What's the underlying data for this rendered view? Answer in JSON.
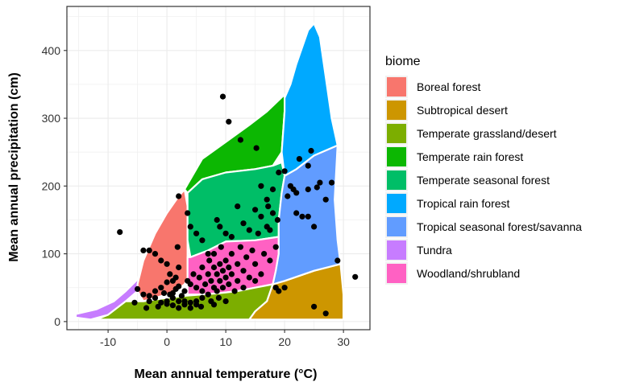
{
  "chart_data": {
    "type": "scatter",
    "xlabel": "Mean annual temperature (°C)",
    "ylabel": "Mean annual precipitation (cm)",
    "xlim": [
      -17,
      34.5
    ],
    "ylim": [
      -12,
      465
    ],
    "x_ticks": [
      -10,
      0,
      10,
      20,
      30
    ],
    "y_ticks": [
      0,
      100,
      200,
      300,
      400
    ],
    "grid": true,
    "legend_position": "right",
    "legend": {
      "title": "biome",
      "entries": [
        {
          "label": "Boreal forest",
          "color": "#F8766D"
        },
        {
          "label": "Subtropical desert",
          "color": "#CD9600"
        },
        {
          "label": "Temperate grassland/desert",
          "color": "#7CAE00"
        },
        {
          "label": "Temperate rain forest",
          "color": "#0CB702"
        },
        {
          "label": "Temperate seasonal forest",
          "color": "#00BE67"
        },
        {
          "label": "Tropical rain forest",
          "color": "#00A9FF"
        },
        {
          "label": "Tropical seasonal forest/savanna",
          "color": "#619CFF"
        },
        {
          "label": "Tundra",
          "color": "#C77CFF"
        },
        {
          "label": "Woodland/shrubland",
          "color": "#FF61C3"
        }
      ]
    },
    "regions": [
      {
        "biome": "Tundra",
        "polygon": [
          [
            -15.5,
            11
          ],
          [
            -12,
            18
          ],
          [
            -9,
            30
          ],
          [
            -7,
            45
          ],
          [
            -5,
            62
          ],
          [
            -4,
            90
          ],
          [
            -5,
            55
          ],
          [
            -5,
            45
          ],
          [
            -7,
            30
          ],
          [
            -10,
            10
          ],
          [
            -13,
            3
          ],
          [
            -15.5,
            6
          ]
        ]
      },
      {
        "biome": "Boreal forest",
        "polygon": [
          [
            -4,
            90
          ],
          [
            -3,
            110
          ],
          [
            -2,
            130
          ],
          [
            0,
            160
          ],
          [
            2,
            185
          ],
          [
            3,
            195
          ],
          [
            3.5,
            170
          ],
          [
            3.5,
            150
          ],
          [
            3.5,
            120
          ],
          [
            3.5,
            95
          ],
          [
            3.5,
            62
          ],
          [
            3,
            55
          ],
          [
            2,
            48
          ],
          [
            0,
            40
          ],
          [
            -2,
            35
          ],
          [
            -4,
            30
          ],
          [
            -5,
            45
          ],
          [
            -5,
            55
          ]
        ]
      },
      {
        "biome": "Temperate rain forest",
        "polygon": [
          [
            3,
            195
          ],
          [
            6,
            240
          ],
          [
            10,
            265
          ],
          [
            14,
            290
          ],
          [
            17,
            310
          ],
          [
            20,
            335
          ],
          [
            20,
            310
          ],
          [
            19.5,
            250
          ],
          [
            18,
            230
          ],
          [
            15,
            225
          ],
          [
            10,
            220
          ],
          [
            6,
            210
          ],
          [
            3.5,
            190
          ]
        ]
      },
      {
        "biome": "Temperate seasonal forest",
        "polygon": [
          [
            3.5,
            190
          ],
          [
            6,
            210
          ],
          [
            10,
            220
          ],
          [
            15,
            225
          ],
          [
            18,
            230
          ],
          [
            19.5,
            235
          ],
          [
            20,
            215
          ],
          [
            19.5,
            190
          ],
          [
            19,
            150
          ],
          [
            19,
            125
          ],
          [
            15,
            120
          ],
          [
            10,
            118
          ],
          [
            7,
            105
          ],
          [
            4,
            95
          ],
          [
            3.5,
            120
          ],
          [
            3.5,
            150
          ]
        ]
      },
      {
        "biome": "Woodland/shrubland",
        "polygon": [
          [
            3.5,
            95
          ],
          [
            4,
            95
          ],
          [
            7,
            105
          ],
          [
            10,
            118
          ],
          [
            15,
            120
          ],
          [
            19,
            125
          ],
          [
            19,
            100
          ],
          [
            18.5,
            75
          ],
          [
            18,
            55
          ],
          [
            15,
            50
          ],
          [
            12,
            45
          ],
          [
            9,
            42
          ],
          [
            6,
            40
          ],
          [
            3.5,
            40
          ],
          [
            3.5,
            62
          ]
        ]
      },
      {
        "biome": "Temperate grassland/desert",
        "polygon": [
          [
            -4,
            30
          ],
          [
            -7,
            30
          ],
          [
            -10,
            10
          ],
          [
            -12,
            3
          ],
          [
            -9,
            3
          ],
          [
            -2,
            3
          ],
          [
            5,
            3
          ],
          [
            10,
            3
          ],
          [
            14,
            3
          ],
          [
            15,
            15
          ],
          [
            17,
            30
          ],
          [
            18,
            55
          ],
          [
            15,
            50
          ],
          [
            12,
            45
          ],
          [
            9,
            42
          ],
          [
            6,
            40
          ],
          [
            3,
            38
          ],
          [
            0,
            35
          ]
        ]
      },
      {
        "biome": "Subtropical desert",
        "polygon": [
          [
            14,
            3
          ],
          [
            30,
            3
          ],
          [
            30,
            40
          ],
          [
            29.5,
            85
          ],
          [
            25,
            75
          ],
          [
            20,
            60
          ],
          [
            18,
            55
          ],
          [
            17,
            30
          ],
          [
            15,
            15
          ]
        ]
      },
      {
        "biome": "Tropical seasonal forest/savanna",
        "polygon": [
          [
            18,
            55
          ],
          [
            20,
            60
          ],
          [
            25,
            75
          ],
          [
            29.5,
            85
          ],
          [
            29,
            120
          ],
          [
            28.5,
            180
          ],
          [
            29,
            260
          ],
          [
            25,
            245
          ],
          [
            22,
            225
          ],
          [
            20,
            215
          ],
          [
            19.5,
            190
          ],
          [
            19,
            150
          ],
          [
            19,
            125
          ],
          [
            19,
            100
          ],
          [
            18.5,
            75
          ]
        ]
      },
      {
        "biome": "Tropical rain forest",
        "polygon": [
          [
            20,
            215
          ],
          [
            22,
            225
          ],
          [
            25,
            245
          ],
          [
            29,
            260
          ],
          [
            28,
            300
          ],
          [
            27,
            360
          ],
          [
            26,
            420
          ],
          [
            25,
            440
          ],
          [
            24,
            430
          ],
          [
            22,
            380
          ],
          [
            21,
            350
          ],
          [
            20,
            330
          ],
          [
            20,
            310
          ],
          [
            19.5,
            250
          ]
        ]
      }
    ],
    "points": [
      [
        -8,
        132
      ],
      [
        9.5,
        332
      ],
      [
        10.5,
        295
      ],
      [
        12.5,
        268
      ],
      [
        15.2,
        256
      ],
      [
        24.5,
        252
      ],
      [
        26,
        205
      ],
      [
        28,
        205
      ],
      [
        25.5,
        198
      ],
      [
        24,
        195
      ],
      [
        20,
        222
      ],
      [
        19,
        220
      ],
      [
        -5,
        48
      ],
      [
        -5.5,
        28
      ],
      [
        -3.5,
        20
      ],
      [
        -3,
        38
      ],
      [
        -2,
        35
      ],
      [
        -1.5,
        22
      ],
      [
        -1,
        50
      ],
      [
        -0.5,
        42
      ],
      [
        0,
        58
      ],
      [
        0,
        26
      ],
      [
        0.5,
        40
      ],
      [
        1,
        24
      ],
      [
        1,
        35
      ],
      [
        1.5,
        48
      ],
      [
        2,
        30
      ],
      [
        2,
        52
      ],
      [
        2.5,
        38
      ],
      [
        3,
        25
      ],
      [
        3,
        45
      ],
      [
        3.5,
        60
      ],
      [
        4,
        20
      ],
      [
        4,
        55
      ],
      [
        4.5,
        70
      ],
      [
        5,
        30
      ],
      [
        5,
        50
      ],
      [
        5.5,
        65
      ],
      [
        5.8,
        22
      ],
      [
        6,
        45
      ],
      [
        6,
        80
      ],
      [
        6.5,
        55
      ],
      [
        7,
        40
      ],
      [
        7,
        70
      ],
      [
        7.2,
        90
      ],
      [
        7.5,
        30
      ],
      [
        7.5,
        60
      ],
      [
        8,
        50
      ],
      [
        8,
        80
      ],
      [
        8,
        100
      ],
      [
        8.5,
        45
      ],
      [
        8.5,
        70
      ],
      [
        8.8,
        35
      ],
      [
        9,
        60
      ],
      [
        9,
        85
      ],
      [
        9.2,
        110
      ],
      [
        9.5,
        50
      ],
      [
        9.5,
        75
      ],
      [
        10,
        65
      ],
      [
        10,
        90
      ],
      [
        10.5,
        55
      ],
      [
        10.5,
        80
      ],
      [
        11,
        70
      ],
      [
        11,
        100
      ],
      [
        11.5,
        45
      ],
      [
        12,
        60
      ],
      [
        12,
        85
      ],
      [
        12.5,
        110
      ],
      [
        13,
        50
      ],
      [
        13,
        75
      ],
      [
        13.5,
        95
      ],
      [
        14,
        65
      ],
      [
        14.5,
        105
      ],
      [
        15,
        60
      ],
      [
        15,
        85
      ],
      [
        15.5,
        130
      ],
      [
        16,
        70
      ],
      [
        16.5,
        100
      ],
      [
        17,
        140
      ],
      [
        17.5,
        90
      ],
      [
        18,
        160
      ],
      [
        18.5,
        110
      ],
      [
        3.5,
        160
      ],
      [
        4,
        140
      ],
      [
        5,
        130
      ],
      [
        6,
        120
      ],
      [
        7,
        100
      ],
      [
        8.5,
        150
      ],
      [
        9,
        140
      ],
      [
        10,
        130
      ],
      [
        11,
        125
      ],
      [
        12,
        170
      ],
      [
        13,
        145
      ],
      [
        14,
        135
      ],
      [
        15,
        165
      ],
      [
        16,
        155
      ],
      [
        17,
        180
      ],
      [
        18,
        195
      ],
      [
        16,
        200
      ],
      [
        17.2,
        170
      ],
      [
        18.8,
        150
      ],
      [
        17.5,
        135
      ],
      [
        -4,
        105
      ],
      [
        -3,
        105
      ],
      [
        -2,
        100
      ],
      [
        -1,
        90
      ],
      [
        0,
        85
      ],
      [
        0.5,
        70
      ],
      [
        1,
        60
      ],
      [
        1.5,
        65
      ],
      [
        2,
        80
      ],
      [
        2,
        185
      ],
      [
        1.8,
        110
      ],
      [
        21,
        200
      ],
      [
        22,
        190
      ],
      [
        22,
        160
      ],
      [
        23,
        155
      ],
      [
        24,
        155
      ],
      [
        25,
        140
      ],
      [
        27,
        180
      ],
      [
        24,
        230
      ],
      [
        22.5,
        240
      ],
      [
        21.5,
        195
      ],
      [
        20.5,
        185
      ],
      [
        25,
        22
      ],
      [
        27,
        12
      ],
      [
        29,
        90
      ],
      [
        32,
        66
      ],
      [
        20,
        50
      ],
      [
        19,
        45
      ],
      [
        18.5,
        50
      ],
      [
        10,
        30
      ],
      [
        8,
        25
      ],
      [
        6,
        35
      ],
      [
        5,
        25
      ],
      [
        4,
        28
      ],
      [
        3,
        30
      ],
      [
        2,
        20
      ],
      [
        1,
        42
      ],
      [
        0,
        30
      ],
      [
        -1,
        28
      ],
      [
        -2,
        45
      ],
      [
        -3,
        30
      ],
      [
        -4,
        40
      ]
    ]
  }
}
